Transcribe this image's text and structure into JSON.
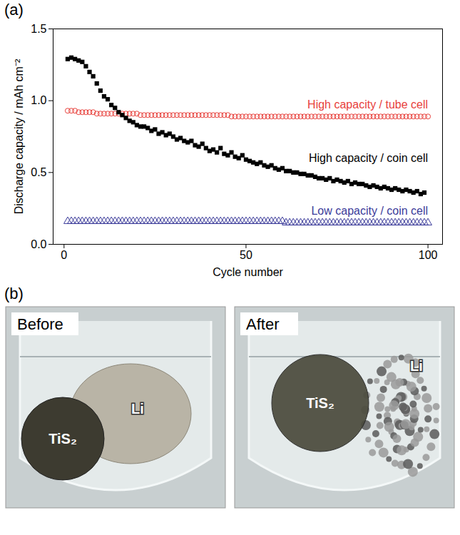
{
  "chart_data": {
    "type": "scatter",
    "xlabel": "Cycle number",
    "ylabel": "Discharge capacity / mAh cm⁻²",
    "xlim": [
      -3,
      104
    ],
    "xticks": [
      0,
      50,
      100
    ],
    "ylim": [
      0,
      1.5
    ],
    "yticks": [
      {
        "value": 0,
        "label": "0.0"
      },
      {
        "value": 0.5,
        "label": "0.5"
      },
      {
        "value": 1.0,
        "label": "1.0"
      },
      {
        "value": 1.5,
        "label": "1.5"
      }
    ],
    "x": [
      1,
      2,
      3,
      4,
      5,
      6,
      7,
      8,
      9,
      10,
      11,
      12,
      13,
      14,
      15,
      16,
      17,
      18,
      19,
      20,
      21,
      22,
      23,
      24,
      25,
      26,
      27,
      28,
      29,
      30,
      31,
      32,
      33,
      34,
      35,
      36,
      37,
      38,
      39,
      40,
      41,
      42,
      43,
      44,
      45,
      46,
      47,
      48,
      49,
      50,
      51,
      52,
      53,
      54,
      55,
      56,
      57,
      58,
      59,
      60,
      61,
      62,
      63,
      64,
      65,
      66,
      67,
      68,
      69,
      70,
      71,
      72,
      73,
      74,
      75,
      76,
      77,
      78,
      79,
      80,
      81,
      82,
      83,
      84,
      85,
      86,
      87,
      88,
      89,
      90,
      91,
      92,
      93,
      94,
      95,
      96,
      97,
      98,
      99,
      100
    ],
    "series": [
      {
        "name": "High capacity / tube cell",
        "color": "#e8413c",
        "marker": "circle-open",
        "values": [
          0.93,
          0.93,
          0.93,
          0.92,
          0.92,
          0.92,
          0.92,
          0.92,
          0.91,
          0.91,
          0.91,
          0.91,
          0.91,
          0.91,
          0.91,
          0.91,
          0.91,
          0.91,
          0.91,
          0.91,
          0.9,
          0.9,
          0.9,
          0.9,
          0.9,
          0.9,
          0.9,
          0.9,
          0.9,
          0.9,
          0.9,
          0.9,
          0.9,
          0.9,
          0.9,
          0.9,
          0.9,
          0.9,
          0.9,
          0.9,
          0.9,
          0.9,
          0.9,
          0.9,
          0.9,
          0.89,
          0.89,
          0.89,
          0.89,
          0.89,
          0.89,
          0.89,
          0.89,
          0.89,
          0.89,
          0.89,
          0.89,
          0.89,
          0.89,
          0.89,
          0.89,
          0.89,
          0.89,
          0.89,
          0.89,
          0.89,
          0.89,
          0.89,
          0.89,
          0.89,
          0.89,
          0.89,
          0.89,
          0.89,
          0.89,
          0.89,
          0.89,
          0.89,
          0.89,
          0.89,
          0.89,
          0.89,
          0.89,
          0.89,
          0.89,
          0.89,
          0.89,
          0.89,
          0.89,
          0.89,
          0.89,
          0.89,
          0.89,
          0.89,
          0.89,
          0.89,
          0.89,
          0.89,
          0.89,
          0.89
        ]
      },
      {
        "name": "High capacity / coin cell",
        "color": "#000000",
        "marker": "square-filled",
        "values": [
          1.29,
          1.3,
          1.29,
          1.28,
          1.27,
          1.24,
          1.2,
          1.17,
          1.12,
          1.07,
          1.03,
          1.01,
          0.97,
          0.95,
          0.92,
          0.9,
          0.88,
          0.86,
          0.85,
          0.83,
          0.82,
          0.82,
          0.81,
          0.79,
          0.8,
          0.77,
          0.78,
          0.76,
          0.77,
          0.75,
          0.73,
          0.74,
          0.72,
          0.71,
          0.72,
          0.69,
          0.68,
          0.7,
          0.67,
          0.65,
          0.66,
          0.64,
          0.67,
          0.63,
          0.62,
          0.64,
          0.61,
          0.6,
          0.62,
          0.59,
          0.58,
          0.57,
          0.56,
          0.57,
          0.55,
          0.54,
          0.55,
          0.53,
          0.52,
          0.53,
          0.51,
          0.51,
          0.5,
          0.5,
          0.49,
          0.49,
          0.48,
          0.48,
          0.47,
          0.46,
          0.46,
          0.45,
          0.46,
          0.44,
          0.45,
          0.44,
          0.43,
          0.44,
          0.42,
          0.43,
          0.42,
          0.42,
          0.41,
          0.4,
          0.41,
          0.4,
          0.39,
          0.4,
          0.39,
          0.38,
          0.39,
          0.38,
          0.37,
          0.38,
          0.37,
          0.36,
          0.37,
          0.35,
          0.36,
          null
        ]
      },
      {
        "name": "Low capacity / coin cell",
        "color": "#3b3b9a",
        "marker": "triangle-open",
        "values": [
          0.16,
          0.16,
          0.16,
          0.16,
          0.16,
          0.16,
          0.16,
          0.16,
          0.16,
          0.16,
          0.16,
          0.16,
          0.16,
          0.16,
          0.16,
          0.16,
          0.16,
          0.16,
          0.16,
          0.16,
          0.16,
          0.16,
          0.16,
          0.16,
          0.16,
          0.16,
          0.16,
          0.16,
          0.16,
          0.16,
          0.16,
          0.16,
          0.16,
          0.16,
          0.16,
          0.16,
          0.16,
          0.16,
          0.16,
          0.16,
          0.16,
          0.16,
          0.16,
          0.16,
          0.16,
          0.16,
          0.16,
          0.16,
          0.16,
          0.16,
          0.16,
          0.16,
          0.16,
          0.16,
          0.16,
          0.16,
          0.16,
          0.16,
          0.16,
          0.16,
          0.15,
          0.15,
          0.15,
          0.15,
          0.15,
          0.15,
          0.15,
          0.15,
          0.15,
          0.15,
          0.15,
          0.15,
          0.15,
          0.15,
          0.15,
          0.15,
          0.15,
          0.15,
          0.15,
          0.15,
          0.15,
          0.15,
          0.15,
          0.15,
          0.15,
          0.15,
          0.15,
          0.15,
          0.15,
          0.15,
          0.15,
          0.15,
          0.15,
          0.15,
          0.15,
          0.15,
          0.15,
          0.15,
          0.15,
          0.15
        ]
      }
    ]
  },
  "panel_labels": [
    "(a)",
    "(b)"
  ],
  "photos": [
    {
      "title": "Before",
      "labels": [
        "TiS₂",
        "Li"
      ]
    },
    {
      "title": "After",
      "labels": [
        "TiS₂",
        "Li"
      ]
    }
  ]
}
